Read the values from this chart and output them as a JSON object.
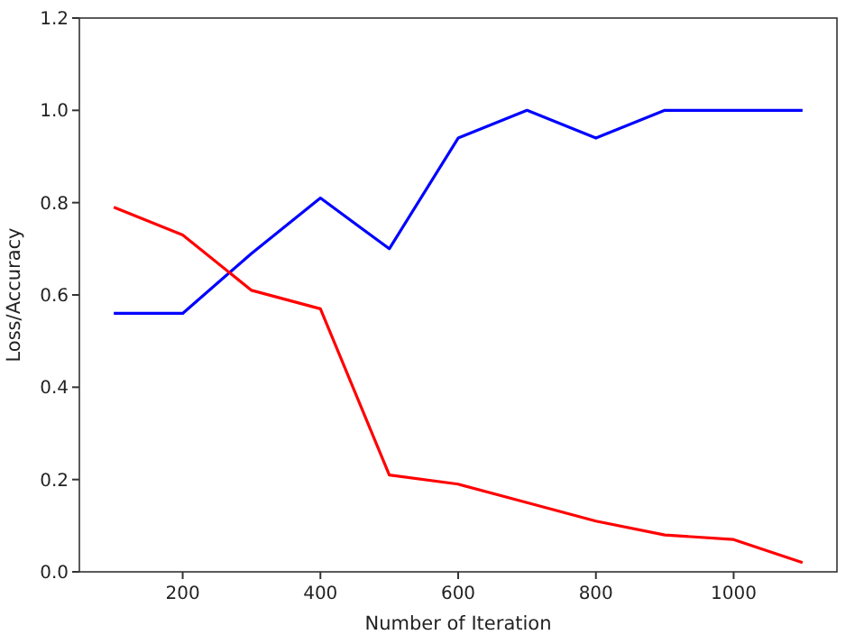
{
  "chart_data": {
    "type": "line",
    "xlabel": "Number of Iteration",
    "ylabel": "Loss/Accuracy",
    "x": [
      100,
      200,
      300,
      400,
      500,
      600,
      700,
      800,
      900,
      1000,
      1100
    ],
    "series": [
      {
        "color": "#0000ff",
        "values": [
          0.56,
          0.56,
          0.69,
          0.81,
          0.7,
          0.94,
          1.0,
          0.94,
          1.0,
          1.0,
          1.0
        ]
      },
      {
        "color": "#ff0000",
        "values": [
          0.79,
          0.73,
          0.61,
          0.57,
          0.21,
          0.19,
          0.15,
          0.11,
          0.08,
          0.07,
          0.02
        ]
      }
    ],
    "xlim": [
      50,
      1150
    ],
    "xticks": [
      200,
      400,
      600,
      800,
      1000
    ],
    "ylim": [
      0,
      1.2
    ],
    "yticks": [
      {
        "value": 0,
        "label": "0.0"
      },
      {
        "value": 0.2,
        "label": "0.2"
      },
      {
        "value": 0.4,
        "label": "0.4"
      },
      {
        "value": 0.6,
        "label": "0.6"
      },
      {
        "value": 0.8,
        "label": "0.8"
      },
      {
        "value": 1,
        "label": "1.0"
      },
      {
        "value": 1.2,
        "label": "1.2"
      }
    ],
    "grid": false,
    "marker": "none",
    "line_style": "solid"
  }
}
